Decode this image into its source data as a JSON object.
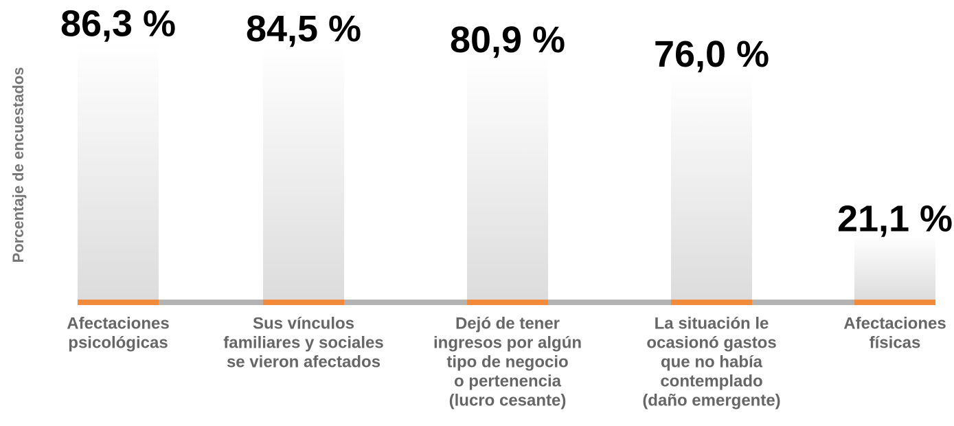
{
  "chart_data": {
    "type": "bar",
    "y_axis_label": "Porcentaje de encuestados",
    "categories": [
      [
        "Afectaciones",
        "psicológicas"
      ],
      [
        "Sus vínculos",
        "familiares y sociales",
        "se vieron afectados"
      ],
      [
        "Dejó de tener",
        "ingresos por algún",
        "tipo de negocio",
        "o pertenencia",
        "(lucro cesante)"
      ],
      [
        "La situación le",
        "ocasionó gastos",
        "que no había",
        "contemplado",
        "(daño emergente)"
      ],
      [
        "Afectaciones",
        "físicas"
      ]
    ],
    "values": [
      86.3,
      84.5,
      80.9,
      76.0,
      21.1
    ],
    "value_labels": [
      "86,3 %",
      "84,5 %",
      "80,9 %",
      "76,0 %",
      "21,1 %"
    ],
    "color": "#dcdcdc",
    "accent_color": "#f28a3c",
    "baseline_color": "#b3b3b3"
  }
}
